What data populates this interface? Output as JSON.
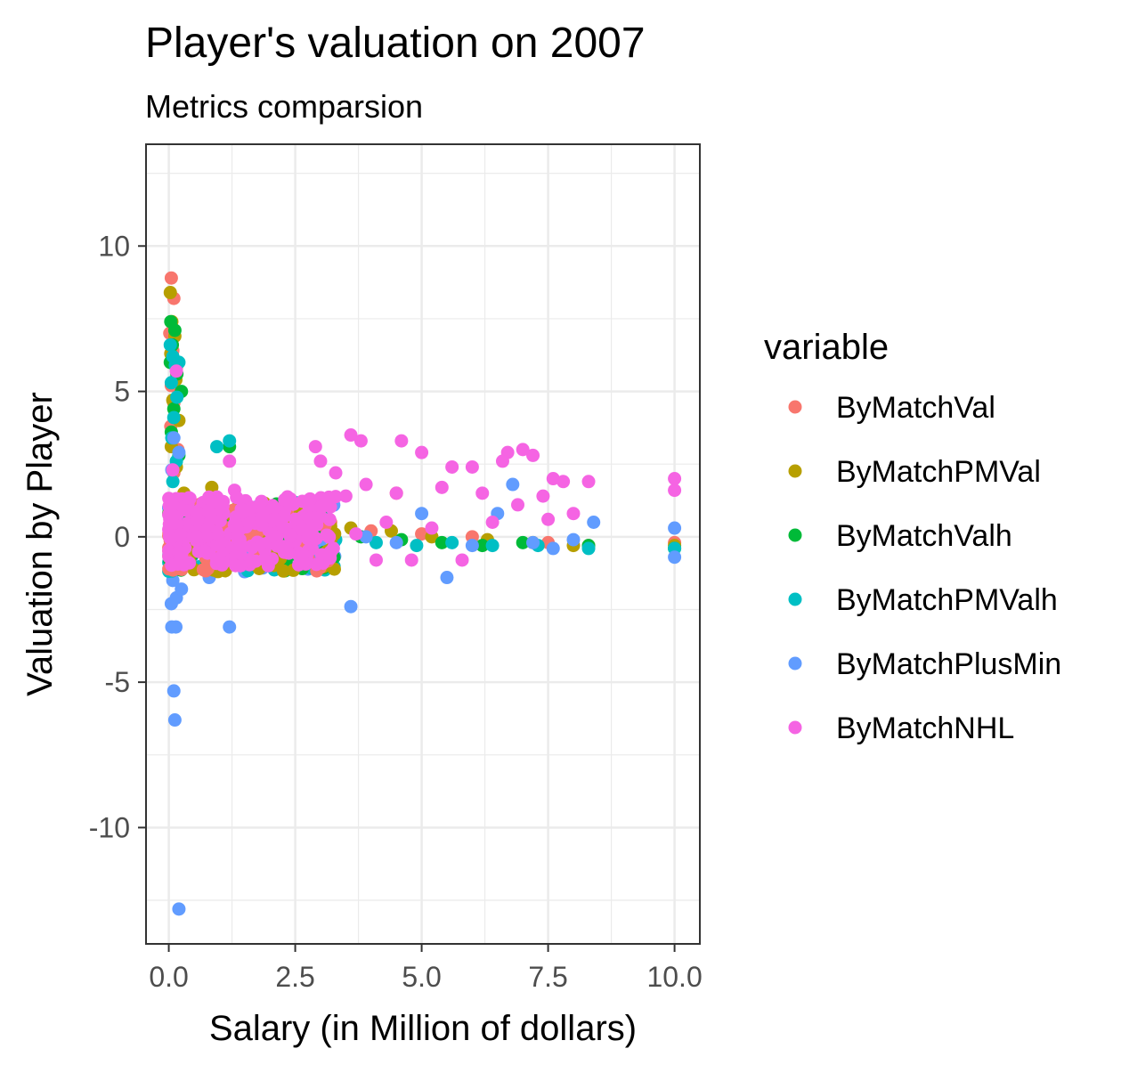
{
  "chart_data": {
    "type": "scatter",
    "title": "Player's valuation on 2007",
    "subtitle": "Metrics comparsion",
    "xlabel": "Salary (in Million of dollars)",
    "ylabel": "Valuation by Player",
    "xlim": [
      -0.45,
      10.5
    ],
    "ylim": [
      -14,
      13.5
    ],
    "x_ticks": [
      0,
      2.5,
      5,
      7.5,
      10
    ],
    "x_tick_labels": [
      "0.0",
      "2.5",
      "5.0",
      "7.5",
      "10.0"
    ],
    "y_ticks": [
      -10,
      -5,
      0,
      5,
      10
    ],
    "y_tick_labels": [
      "-10",
      "-5",
      "0",
      "5",
      "10"
    ],
    "grid": true,
    "legend_title": "variable",
    "legend_position": "right",
    "series": [
      {
        "name": "ByMatchVal",
        "color": "#F8766D",
        "points": [
          [
            0.05,
            8.9
          ],
          [
            0.1,
            8.2
          ],
          [
            0.02,
            7.0
          ],
          [
            0.08,
            6.4
          ],
          [
            0.15,
            5.8
          ],
          [
            0.05,
            5.2
          ],
          [
            0.1,
            4.6
          ],
          [
            0.04,
            3.8
          ],
          [
            0.18,
            3.0
          ],
          [
            0.1,
            2.2
          ],
          [
            0.3,
            1.3
          ],
          [
            0.6,
            1.0
          ],
          [
            0.9,
            0.7
          ],
          [
            1.3,
            0.5
          ],
          [
            1.8,
            0.4
          ],
          [
            2.5,
            0.3
          ],
          [
            3.2,
            0.5
          ],
          [
            4.0,
            0.2
          ],
          [
            4.5,
            1.5
          ],
          [
            5.0,
            0.1
          ],
          [
            6.0,
            0.0
          ],
          [
            7.5,
            -0.2
          ],
          [
            8.3,
            -0.3
          ],
          [
            10.0,
            -0.2
          ]
        ]
      },
      {
        "name": "ByMatchPMVal",
        "color": "#B79F00",
        "points": [
          [
            0.03,
            8.4
          ],
          [
            0.06,
            7.4
          ],
          [
            0.12,
            6.9
          ],
          [
            0.04,
            6.3
          ],
          [
            0.14,
            5.4
          ],
          [
            0.08,
            4.7
          ],
          [
            0.2,
            4.0
          ],
          [
            0.05,
            3.1
          ],
          [
            0.15,
            2.4
          ],
          [
            0.85,
            1.7
          ],
          [
            0.3,
            1.5
          ],
          [
            0.6,
            1.1
          ],
          [
            1.0,
            1.0
          ],
          [
            1.5,
            0.8
          ],
          [
            2.2,
            0.6
          ],
          [
            2.9,
            0.5
          ],
          [
            3.6,
            0.3
          ],
          [
            4.4,
            0.2
          ],
          [
            5.2,
            0.0
          ],
          [
            6.3,
            -0.1
          ],
          [
            7.2,
            -0.2
          ],
          [
            8.0,
            -0.3
          ],
          [
            10.0,
            -0.3
          ]
        ]
      },
      {
        "name": "ByMatchValh",
        "color": "#00BA38",
        "points": [
          [
            0.04,
            7.4
          ],
          [
            0.12,
            7.1
          ],
          [
            0.07,
            6.6
          ],
          [
            0.03,
            6.0
          ],
          [
            0.16,
            5.6
          ],
          [
            0.25,
            5.0
          ],
          [
            0.1,
            4.4
          ],
          [
            0.05,
            3.6
          ],
          [
            0.2,
            2.8
          ],
          [
            1.2,
            3.1
          ],
          [
            0.4,
            1.2
          ],
          [
            0.7,
            0.9
          ],
          [
            1.1,
            0.7
          ],
          [
            1.6,
            0.5
          ],
          [
            2.3,
            0.4
          ],
          [
            3.0,
            0.1
          ],
          [
            3.8,
            0.0
          ],
          [
            4.6,
            -0.1
          ],
          [
            5.4,
            -0.2
          ],
          [
            6.2,
            -0.3
          ],
          [
            7.0,
            -0.2
          ],
          [
            8.3,
            -0.3
          ],
          [
            10.0,
            -0.4
          ]
        ]
      },
      {
        "name": "ByMatchPMValh",
        "color": "#00BFC4",
        "points": [
          [
            0.03,
            6.6
          ],
          [
            0.08,
            6.2
          ],
          [
            0.13,
            5.9
          ],
          [
            0.2,
            6.0
          ],
          [
            0.05,
            5.3
          ],
          [
            0.16,
            4.8
          ],
          [
            0.1,
            4.1
          ],
          [
            0.06,
            3.4
          ],
          [
            0.15,
            2.6
          ],
          [
            0.08,
            1.9
          ],
          [
            0.95,
            3.1
          ],
          [
            1.2,
            3.3
          ],
          [
            0.5,
            1.0
          ],
          [
            0.8,
            0.6
          ],
          [
            1.3,
            0.4
          ],
          [
            1.9,
            0.2
          ],
          [
            2.6,
            0.1
          ],
          [
            3.3,
            -0.1
          ],
          [
            4.1,
            -0.2
          ],
          [
            4.9,
            -0.3
          ],
          [
            5.6,
            -0.2
          ],
          [
            6.4,
            -0.3
          ],
          [
            7.3,
            -0.3
          ],
          [
            8.3,
            -0.4
          ],
          [
            10.0,
            -0.4
          ]
        ]
      },
      {
        "name": "ByMatchPlusMin",
        "color": "#619CFF",
        "points": [
          [
            0.2,
            -12.8
          ],
          [
            0.12,
            -6.3
          ],
          [
            0.1,
            -5.3
          ],
          [
            0.06,
            -3.1
          ],
          [
            0.14,
            -3.1
          ],
          [
            1.2,
            -3.1
          ],
          [
            3.6,
            -2.4
          ],
          [
            0.05,
            -2.3
          ],
          [
            0.15,
            -2.1
          ],
          [
            0.08,
            -1.5
          ],
          [
            0.25,
            -1.8
          ],
          [
            0.8,
            -1.4
          ],
          [
            1.5,
            -1.2
          ],
          [
            2.2,
            -1.1
          ],
          [
            0.1,
            3.4
          ],
          [
            0.2,
            2.9
          ],
          [
            0.06,
            2.3
          ],
          [
            0.3,
            0.6
          ],
          [
            0.6,
            0.2
          ],
          [
            1.0,
            -0.2
          ],
          [
            1.4,
            0.3
          ],
          [
            2.0,
            0.0
          ],
          [
            2.6,
            -0.3
          ],
          [
            3.2,
            0.2
          ],
          [
            3.9,
            0.0
          ],
          [
            4.5,
            -0.2
          ],
          [
            5.0,
            0.8
          ],
          [
            5.5,
            -1.4
          ],
          [
            6.0,
            -0.3
          ],
          [
            6.5,
            0.8
          ],
          [
            6.8,
            1.8
          ],
          [
            7.2,
            -0.2
          ],
          [
            7.6,
            -0.4
          ],
          [
            8.0,
            -0.1
          ],
          [
            8.4,
            0.5
          ],
          [
            10.0,
            0.3
          ],
          [
            10.0,
            -0.7
          ]
        ]
      },
      {
        "name": "ByMatchNHL",
        "color": "#F564E3",
        "points": [
          [
            0.15,
            5.7
          ],
          [
            1.2,
            2.6
          ],
          [
            0.08,
            2.3
          ],
          [
            0.25,
            1.3
          ],
          [
            0.5,
            0.5
          ],
          [
            0.7,
            0.2
          ],
          [
            0.9,
            -0.3
          ],
          [
            1.1,
            0.8
          ],
          [
            1.3,
            1.6
          ],
          [
            1.5,
            -0.5
          ],
          [
            1.7,
            0.9
          ],
          [
            1.9,
            -0.8
          ],
          [
            2.1,
            0.4
          ],
          [
            2.3,
            1.2
          ],
          [
            2.5,
            -0.2
          ],
          [
            2.7,
            0.6
          ],
          [
            2.9,
            3.1
          ],
          [
            3.0,
            2.6
          ],
          [
            3.2,
            -0.6
          ],
          [
            3.3,
            2.2
          ],
          [
            3.5,
            1.4
          ],
          [
            3.6,
            3.5
          ],
          [
            3.7,
            0.1
          ],
          [
            3.8,
            3.3
          ],
          [
            3.9,
            1.8
          ],
          [
            4.1,
            -0.8
          ],
          [
            4.3,
            0.5
          ],
          [
            4.5,
            1.5
          ],
          [
            4.6,
            3.3
          ],
          [
            4.8,
            -0.8
          ],
          [
            5.0,
            2.9
          ],
          [
            5.2,
            0.3
          ],
          [
            5.4,
            1.7
          ],
          [
            5.6,
            2.4
          ],
          [
            5.8,
            -0.8
          ],
          [
            6.0,
            2.4
          ],
          [
            6.2,
            1.5
          ],
          [
            6.4,
            0.5
          ],
          [
            6.6,
            2.6
          ],
          [
            6.7,
            2.9
          ],
          [
            6.9,
            1.1
          ],
          [
            7.0,
            3.0
          ],
          [
            7.2,
            2.8
          ],
          [
            7.4,
            1.4
          ],
          [
            7.5,
            0.6
          ],
          [
            7.6,
            2.0
          ],
          [
            7.8,
            1.9
          ],
          [
            8.0,
            0.8
          ],
          [
            8.3,
            1.9
          ],
          [
            10.0,
            2.0
          ],
          [
            10.0,
            1.6
          ]
        ]
      }
    ]
  }
}
